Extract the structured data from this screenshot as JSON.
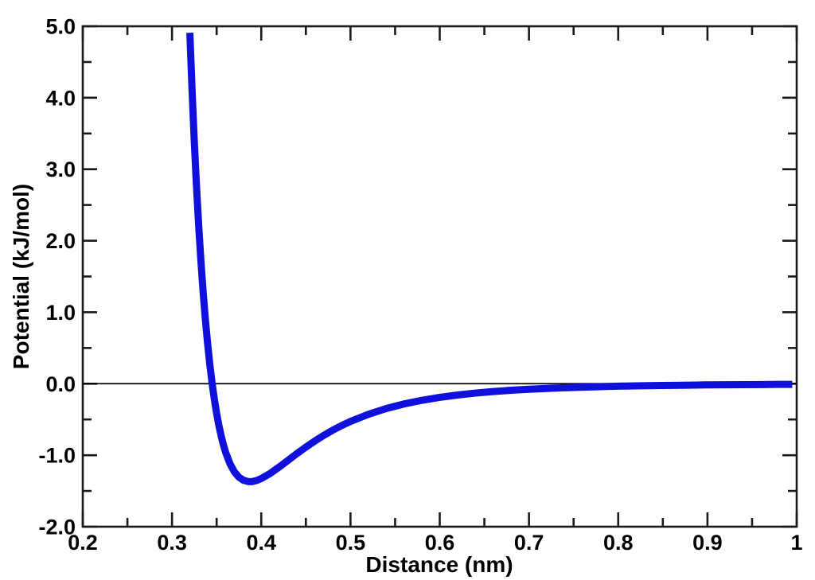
{
  "chart_data": {
    "type": "line",
    "title": "",
    "xlabel": "Distance (nm)",
    "ylabel": "Potential (kJ/mol)",
    "xlim": [
      0.2,
      1.0
    ],
    "ylim": [
      -2.0,
      5.0
    ],
    "x_major_step": 0.1,
    "x_minor_step": 0.05,
    "y_major_step": 1.0,
    "y_minor_step": 0.5,
    "x_tick_labels": [
      "0.2",
      "0.3",
      "0.4",
      "0.5",
      "0.6",
      "0.7",
      "0.8",
      "0.9",
      "1"
    ],
    "y_tick_labels": [
      "-2.0",
      "-1.0",
      "0.0",
      "1.0",
      "2.0",
      "3.0",
      "4.0",
      "5.0"
    ],
    "grid": false,
    "zero_line": true,
    "legend": "none",
    "frame_color": "#1a1a1a",
    "text_color": "#000000",
    "zero_line_color": "#000000",
    "series": [
      {
        "name": "potential-curve",
        "color": "#1010dd",
        "line_width": 9,
        "points": [
          [
            0.32,
            4.909
          ],
          [
            0.3225,
            4.096
          ],
          [
            0.325,
            3.38
          ],
          [
            0.3275,
            2.745
          ],
          [
            0.33,
            2.187
          ],
          [
            0.3325,
            1.695
          ],
          [
            0.335,
            1.262
          ],
          [
            0.3375,
            0.881
          ],
          [
            0.34,
            0.548
          ],
          [
            0.3425,
            0.255
          ],
          [
            0.345,
            0.0
          ],
          [
            0.3475,
            -0.222
          ],
          [
            0.35,
            -0.416
          ],
          [
            0.3525,
            -0.583
          ],
          [
            0.355,
            -0.727
          ],
          [
            0.3575,
            -0.851
          ],
          [
            0.36,
            -0.957
          ],
          [
            0.365,
            -1.121
          ],
          [
            0.37,
            -1.235
          ],
          [
            0.375,
            -1.308
          ],
          [
            0.38,
            -1.35
          ],
          [
            0.385,
            -1.368
          ],
          [
            0.3875,
            -1.37
          ],
          [
            0.39,
            -1.368
          ],
          [
            0.395,
            -1.353
          ],
          [
            0.4,
            -1.327
          ],
          [
            0.41,
            -1.255
          ],
          [
            0.42,
            -1.166
          ],
          [
            0.43,
            -1.072
          ],
          [
            0.44,
            -0.977
          ],
          [
            0.45,
            -0.887
          ],
          [
            0.46,
            -0.802
          ],
          [
            0.47,
            -0.723
          ],
          [
            0.48,
            -0.651
          ],
          [
            0.49,
            -0.586
          ],
          [
            0.5,
            -0.528
          ],
          [
            0.52,
            -0.428
          ],
          [
            0.54,
            -0.347
          ],
          [
            0.56,
            -0.283
          ],
          [
            0.58,
            -0.232
          ],
          [
            0.6,
            -0.191
          ],
          [
            0.62,
            -0.158
          ],
          [
            0.64,
            -0.131
          ],
          [
            0.66,
            -0.11
          ],
          [
            0.68,
            -0.092
          ],
          [
            0.7,
            -0.077
          ],
          [
            0.72,
            -0.066
          ],
          [
            0.74,
            -0.056
          ],
          [
            0.76,
            -0.048
          ],
          [
            0.78,
            -0.041
          ],
          [
            0.8,
            -0.035
          ],
          [
            0.82,
            -0.03
          ],
          [
            0.84,
            -0.026
          ],
          [
            0.86,
            -0.023
          ],
          [
            0.88,
            -0.02
          ],
          [
            0.9,
            -0.017
          ],
          [
            0.92,
            -0.015
          ],
          [
            0.94,
            -0.013
          ],
          [
            0.96,
            -0.012
          ],
          [
            0.98,
            -0.01
          ],
          [
            0.995,
            -0.01
          ]
        ]
      }
    ]
  }
}
